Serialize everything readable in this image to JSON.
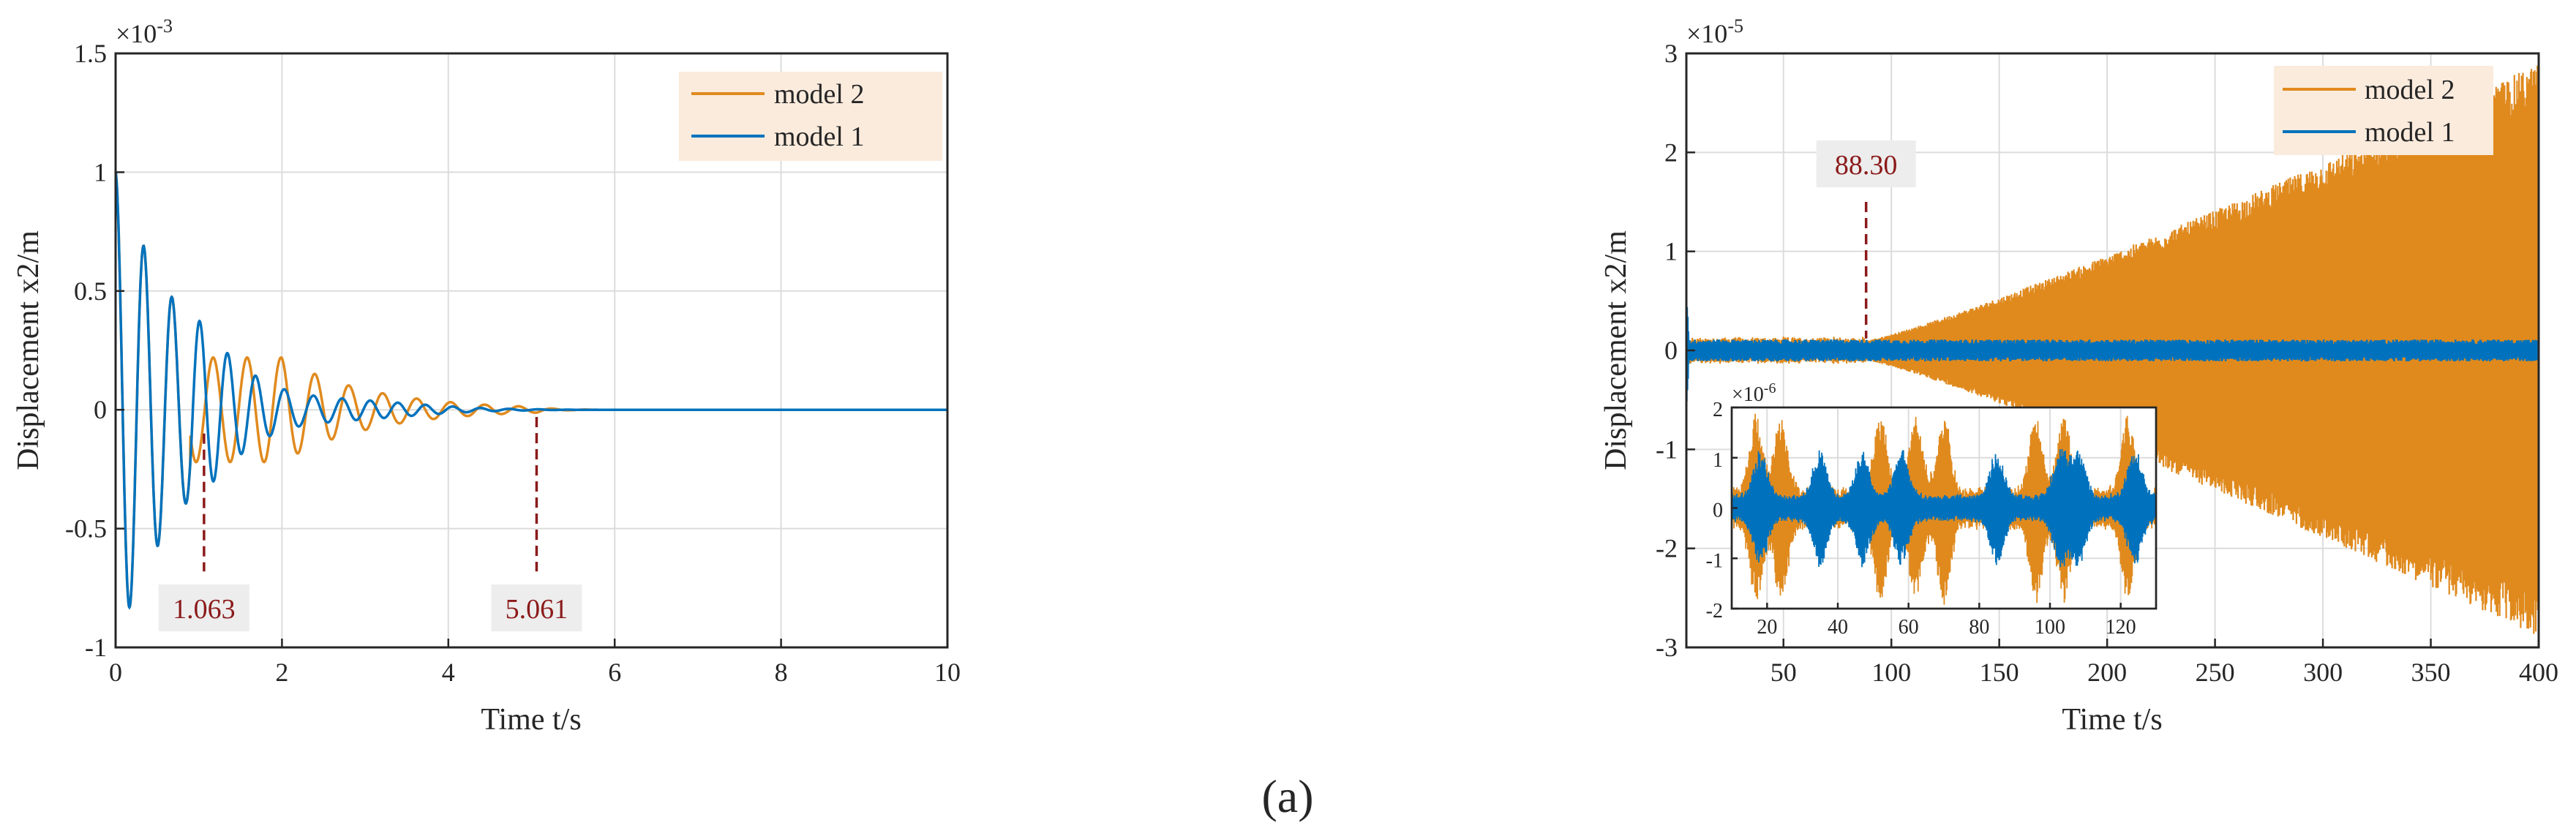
{
  "caption": "(a)",
  "colors": {
    "model1": "#0072BD",
    "model2": "#D95319",
    "annotation": "#8B1A1A",
    "grid": "#DCDCDC",
    "legend_bg": "#FBEBDD",
    "label_bg": "#EDEDED"
  },
  "chart_data": [
    {
      "type": "line",
      "xlabel": "Time t/s",
      "ylabel": "Displacement x2/m",
      "exponent": "×10",
      "exponent_power": "-3",
      "xlim": [
        0,
        10
      ],
      "ylim": [
        -1,
        1.5
      ],
      "xticks": [
        "0",
        "2",
        "4",
        "6",
        "8",
        "10"
      ],
      "yticks": [
        "-1",
        "-0.5",
        "0",
        "0.5",
        "1",
        "1.5"
      ],
      "grid": true,
      "legend_position": "top-right",
      "series": [
        {
          "name": "model 2",
          "color": "#E08A1E",
          "initial": 1.0,
          "freq_hz": 2.45,
          "decay": 0.95,
          "settle_time": 5.06
        },
        {
          "name": "model 1",
          "color": "#0072BD",
          "initial": 1.0,
          "freq_hz": 2.95,
          "decay": 1.1,
          "settle_time": 5.06
        }
      ],
      "annotations": [
        {
          "label": "1.063",
          "x": 1.063
        },
        {
          "label": "5.061",
          "x": 5.061
        }
      ]
    },
    {
      "type": "line",
      "xlabel": "Time t/s",
      "ylabel": "Displacement x2/m",
      "exponent": "×10",
      "exponent_power": "-5",
      "xlim": [
        5,
        400
      ],
      "ylim": [
        -3,
        3
      ],
      "xticks": [
        "50",
        "100",
        "150",
        "200",
        "250",
        "300",
        "350",
        "400"
      ],
      "yticks": [
        "-3",
        "-2",
        "-1",
        "0",
        "1",
        "2",
        "3"
      ],
      "grid": true,
      "legend_position": "top-right",
      "series": [
        {
          "name": "model 2",
          "color": "#E08A1E",
          "envelope_start": 0.1,
          "envelope_end": 2.9,
          "growth_start": 88.3
        },
        {
          "name": "model 1",
          "color": "#0072BD",
          "envelope_start": 0.1,
          "envelope_end": 0.15
        }
      ],
      "annotations": [
        {
          "label": "88.30",
          "x": 88.3
        }
      ],
      "inset": {
        "exponent": "×10",
        "exponent_power": "-6",
        "xlim": [
          10,
          130
        ],
        "ylim": [
          -2,
          2
        ],
        "xticks": [
          "20",
          "40",
          "60",
          "80",
          "100",
          "120"
        ],
        "yticks": [
          "-2",
          "-1",
          "0",
          "1",
          "2"
        ]
      }
    }
  ]
}
